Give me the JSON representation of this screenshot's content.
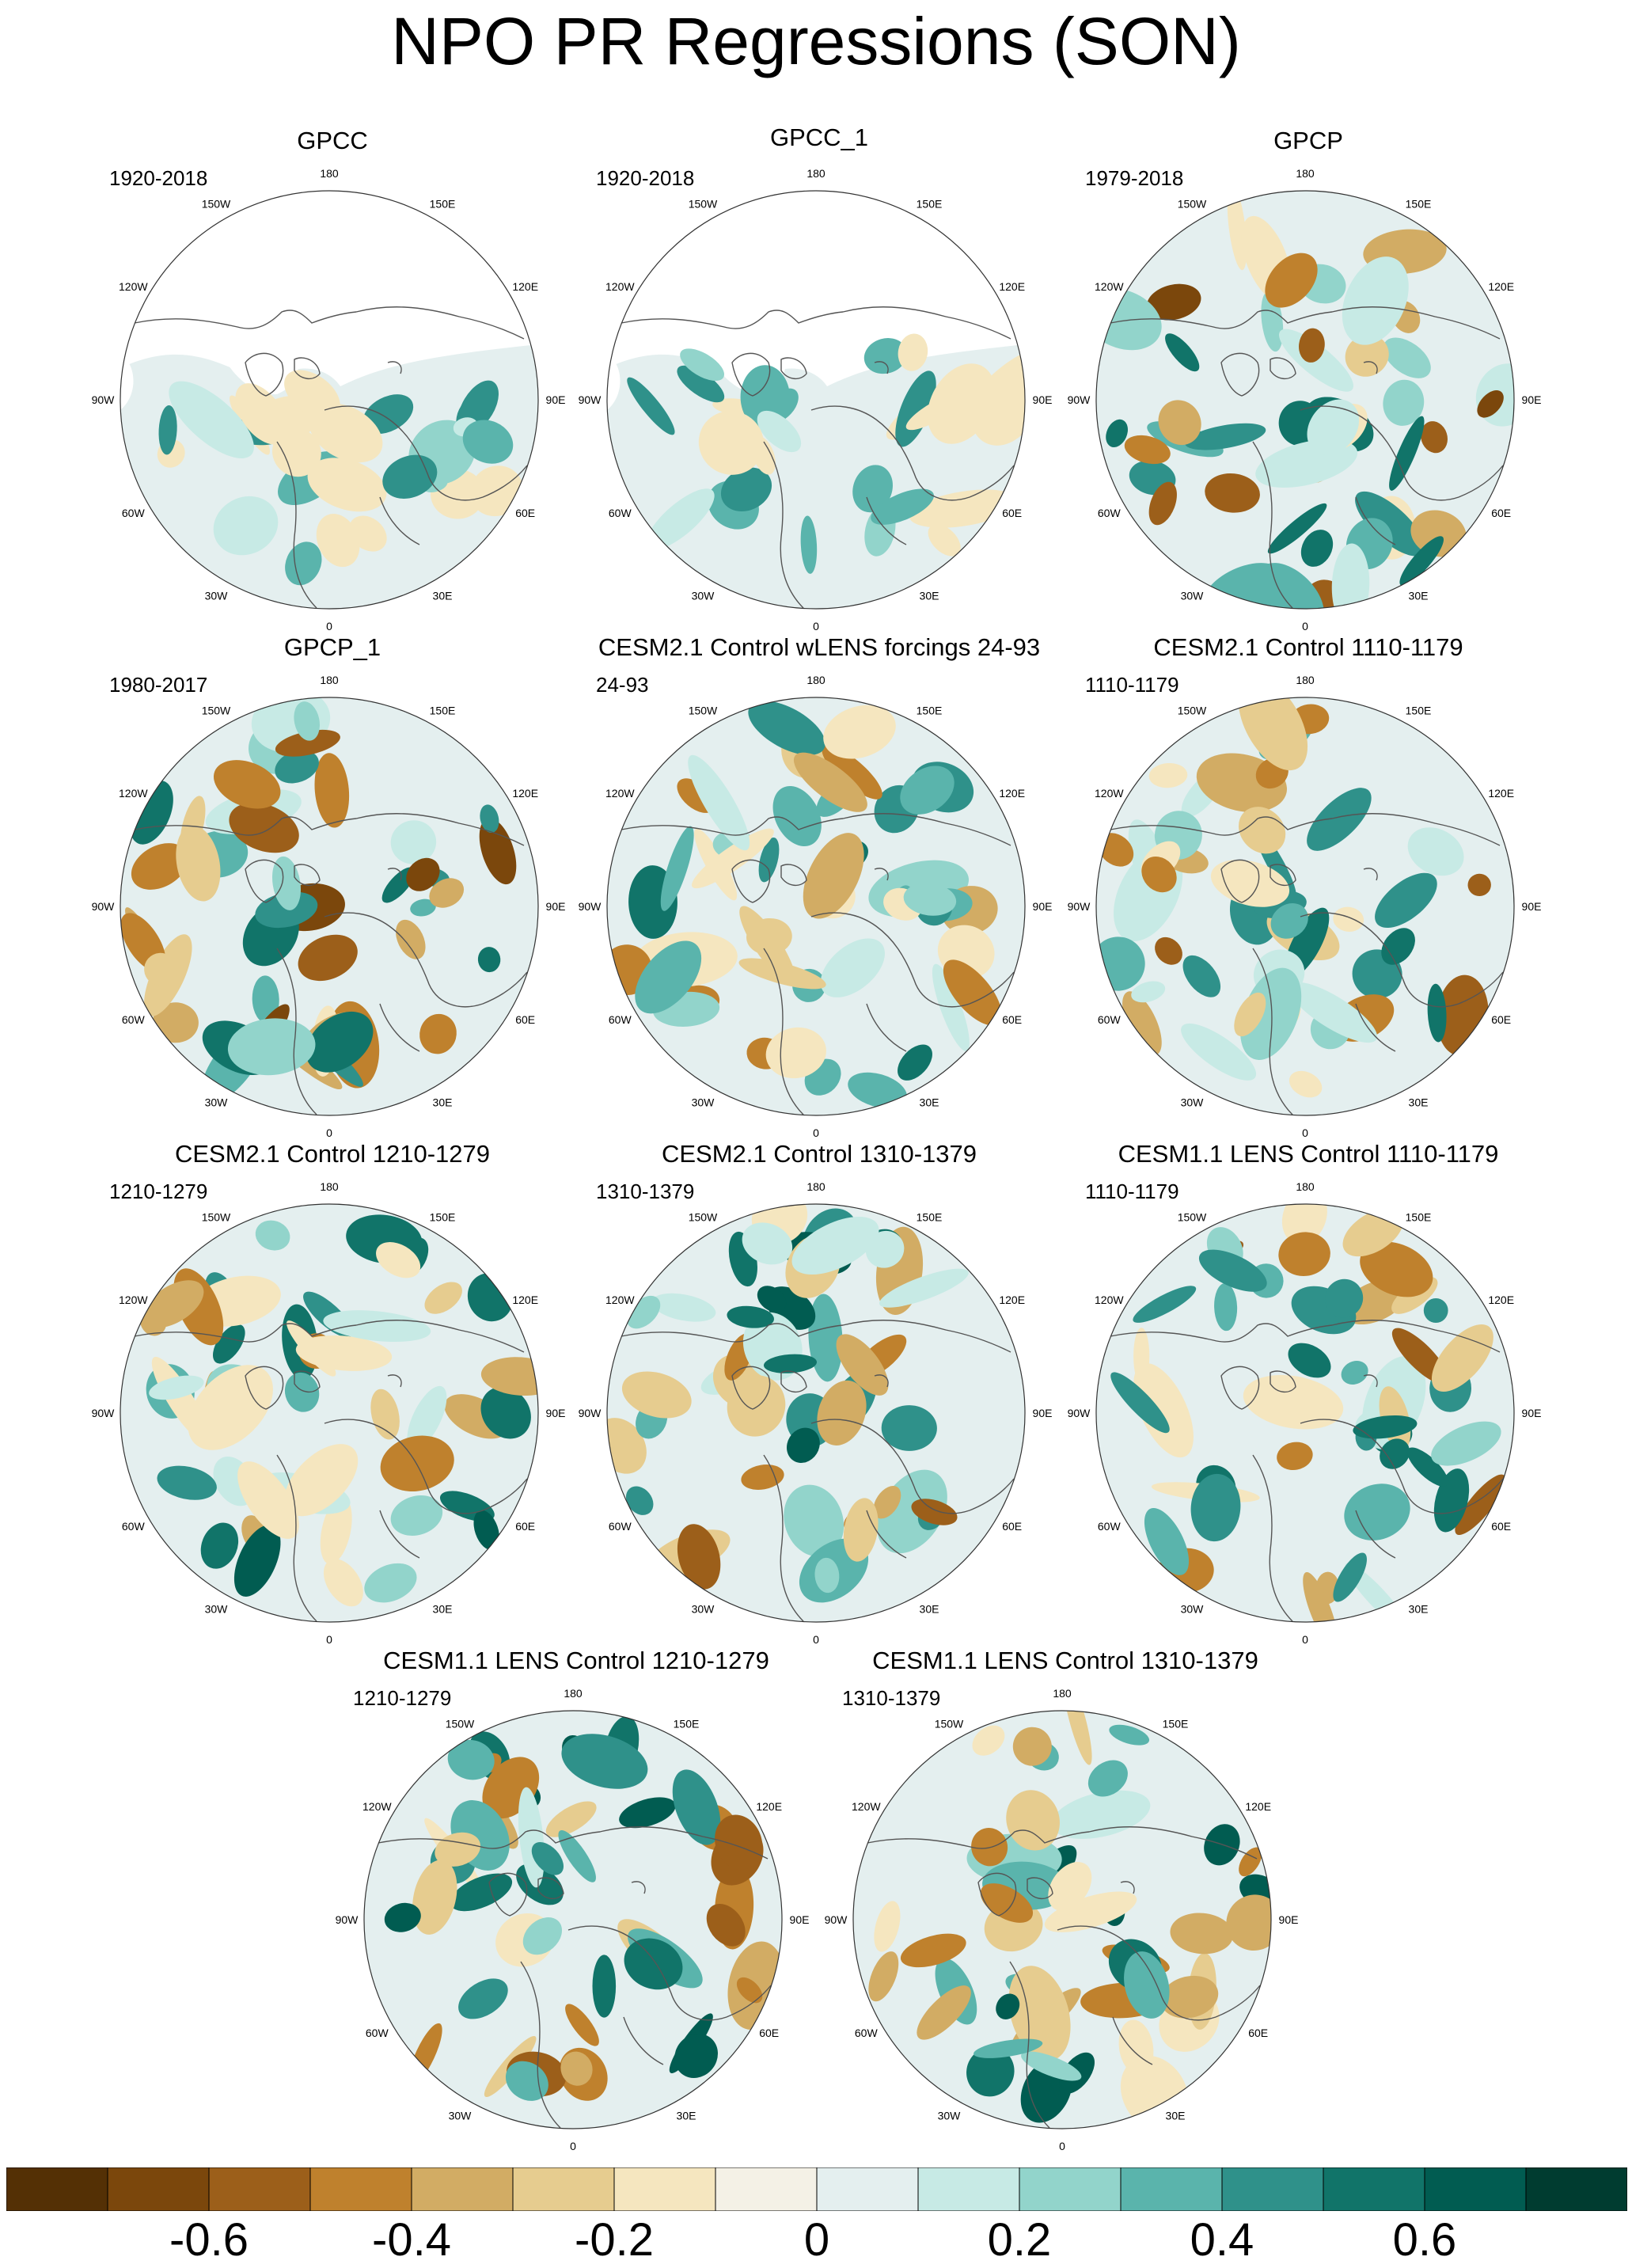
{
  "title": "NPO PR Regressions (SON)",
  "lon_labels": [
    "180",
    "150E",
    "120E",
    "90E",
    "60E",
    "30E",
    "0",
    "30W",
    "60W",
    "90W",
    "120W",
    "150W"
  ],
  "panels": [
    {
      "title": "GPCC",
      "period": "1920-2018",
      "coverage": "land"
    },
    {
      "title": "GPCC_1",
      "period": "1920-2018",
      "coverage": "land"
    },
    {
      "title": "GPCP",
      "period": "1979-2018",
      "coverage": "full"
    },
    {
      "title": "GPCP_1",
      "period": "1980-2017",
      "coverage": "full"
    },
    {
      "title": "CESM2.1 Control wLENS forcings 24-93",
      "period": "24-93",
      "coverage": "full"
    },
    {
      "title": "CESM2.1 Control 1110-1179",
      "period": "1110-1179",
      "coverage": "full"
    },
    {
      "title": "CESM2.1 Control 1210-1279",
      "period": "1210-1279",
      "coverage": "full"
    },
    {
      "title": "CESM2.1 Control 1310-1379",
      "period": "1310-1379",
      "coverage": "full"
    },
    {
      "title": "CESM1.1 LENS Control 1110-1179",
      "period": "1110-1179",
      "coverage": "full"
    },
    {
      "title": "CESM1.1 LENS Control 1210-1279",
      "period": "1210-1279",
      "coverage": "full"
    },
    {
      "title": "CESM1.1 LENS Control 1310-1379",
      "period": "1310-1379",
      "coverage": "full"
    }
  ],
  "colorbar": {
    "colors": [
      "#543005",
      "#7b470c",
      "#9c5f1a",
      "#bf812d",
      "#d2ac64",
      "#e6cc8f",
      "#f5e6bf",
      "#f4f1e6",
      "#e4efef",
      "#c7eae5",
      "#92d4cb",
      "#5ab4ac",
      "#2f918a",
      "#117469",
      "#015c51",
      "#003c30"
    ],
    "levels": [
      -0.7,
      -0.6,
      -0.5,
      -0.4,
      -0.3,
      -0.2,
      -0.1,
      0,
      0.1,
      0.2,
      0.3,
      0.4,
      0.5,
      0.6,
      0.7
    ],
    "tick_labels": [
      "-0.6",
      "-0.4",
      "-0.2",
      "0",
      "0.2",
      "0.4",
      "0.6"
    ],
    "tick_values": [
      -0.6,
      -0.4,
      -0.2,
      0,
      0.2,
      0.4,
      0.6
    ]
  },
  "chart_data": {
    "type": "heatmap",
    "title": "NPO PR Regressions (SON)",
    "projection": "north polar stereographic",
    "variable": "PR",
    "season": "SON",
    "color_range": [
      -0.7,
      0.7
    ],
    "panels": [
      {
        "title": "GPCC",
        "period": "1920-2018",
        "min_shown": -0.2,
        "max_shown": 0.5
      },
      {
        "title": "GPCC_1",
        "period": "1920-2018",
        "min_shown": -0.2,
        "max_shown": 0.5
      },
      {
        "title": "GPCP",
        "period": "1979-2018",
        "min_shown": -0.7,
        "max_shown": 0.6
      },
      {
        "title": "GPCP_1",
        "period": "1980-2017",
        "min_shown": -0.7,
        "max_shown": 0.6
      },
      {
        "title": "CESM2.1 Control wLENS forcings 24-93",
        "period": "24-93",
        "min_shown": -0.5,
        "max_shown": 0.6
      },
      {
        "title": "CESM2.1 Control 1110-1179",
        "period": "1110-1179",
        "min_shown": -0.6,
        "max_shown": 0.6
      },
      {
        "title": "CESM2.1 Control 1210-1279",
        "period": "1210-1279",
        "min_shown": -0.5,
        "max_shown": 0.7
      },
      {
        "title": "CESM2.1 Control 1310-1379",
        "period": "1310-1379",
        "min_shown": -0.6,
        "max_shown": 0.7
      },
      {
        "title": "CESM1.1 LENS Control 1110-1179",
        "period": "1110-1179",
        "min_shown": -0.6,
        "max_shown": 0.6
      },
      {
        "title": "CESM1.1 LENS Control 1210-1279",
        "period": "1210-1279",
        "min_shown": -0.6,
        "max_shown": 0.7
      },
      {
        "title": "CESM1.1 LENS Control 1310-1379",
        "period": "1310-1379",
        "min_shown": -0.5,
        "max_shown": 0.7
      }
    ]
  }
}
